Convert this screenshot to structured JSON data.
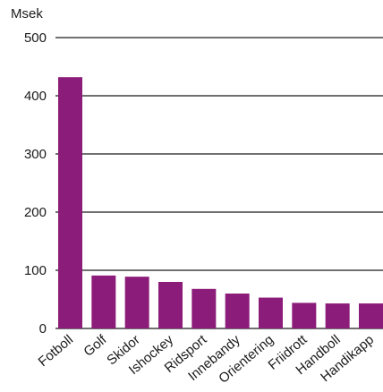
{
  "chart_data": {
    "type": "bar",
    "unit_label": "Msek",
    "categories": [
      "Fotboll",
      "Golf",
      "Skidor",
      "Ishockey",
      "Ridsport",
      "Innebandy",
      "Orientering",
      "Friidrott",
      "Handboll",
      "Handikapp"
    ],
    "values": [
      432,
      91,
      89,
      80,
      68,
      60,
      53,
      44,
      43,
      43
    ],
    "ylim": [
      0,
      500
    ],
    "yticks": [
      0,
      100,
      200,
      300,
      400,
      500
    ],
    "grid": true,
    "bar_color": "#8c1c7a",
    "axis_color": "#1a1a1a"
  }
}
